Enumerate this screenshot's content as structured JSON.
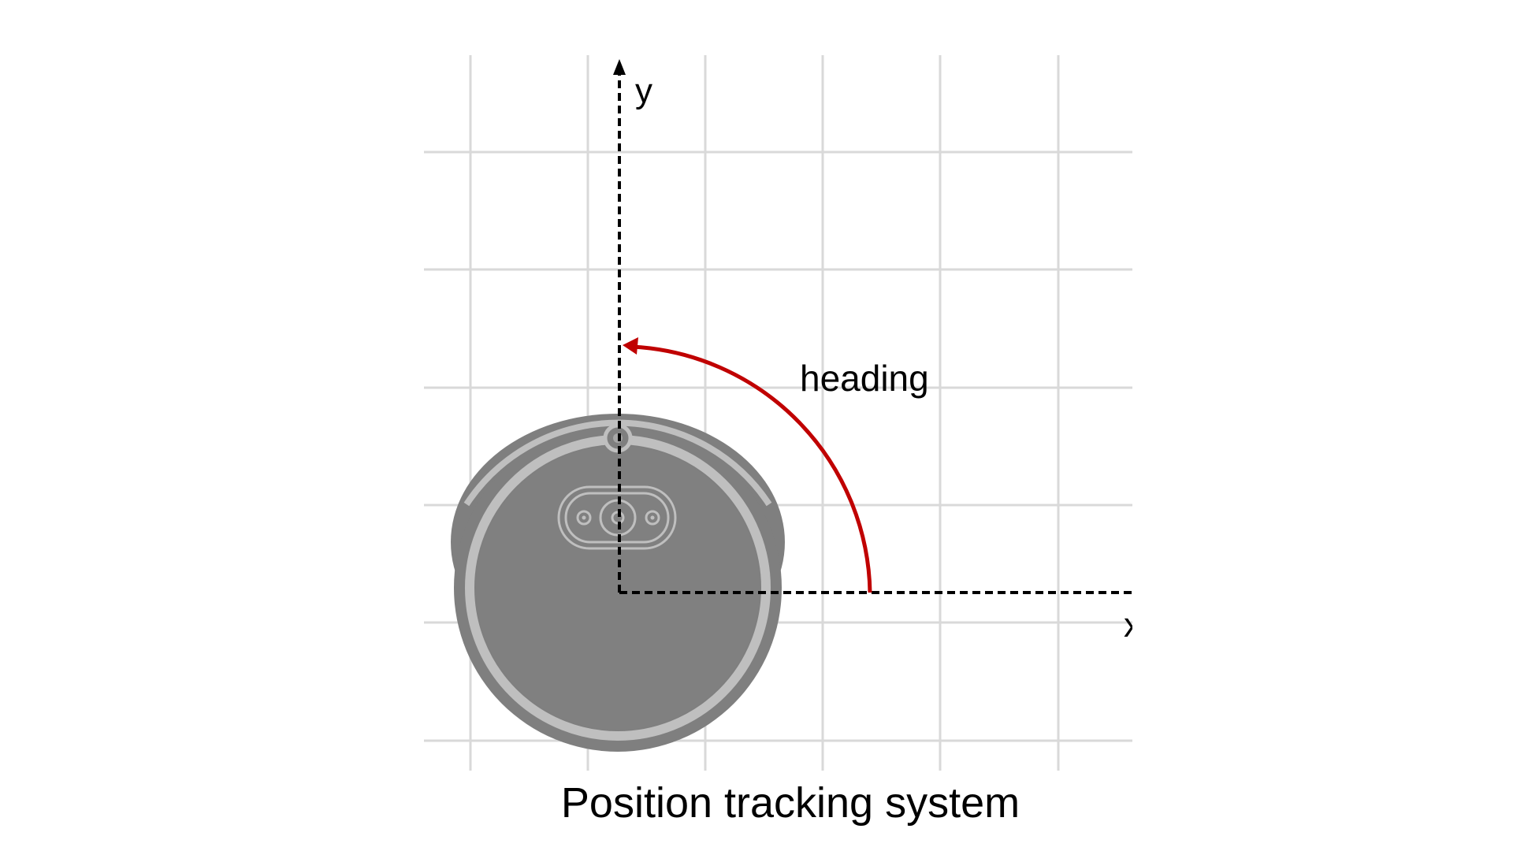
{
  "diagram": {
    "y_axis_label": "y",
    "x_axis_label": "x",
    "angle_label": "heading",
    "caption": "Position tracking system",
    "colors": {
      "grid": "#d9d9d9",
      "axes": "#000000",
      "heading_arc": "#c00000",
      "robot_outer": "#7f7f7f",
      "robot_ring": "#bfbfbf",
      "robot_body": "#808080"
    },
    "icons": [
      "robot-vacuum-icon"
    ]
  }
}
